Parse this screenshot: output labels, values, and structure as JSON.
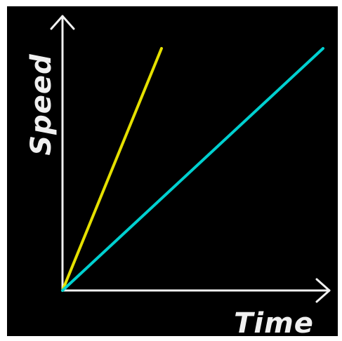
{
  "chart_data": {
    "type": "line",
    "xlabel": "Time",
    "ylabel": "Speed",
    "xlim": [
      0,
      1
    ],
    "ylim": [
      0,
      1
    ],
    "grid": false,
    "series": [
      {
        "color": "#e5e000",
        "x": [
          0,
          0.38
        ],
        "y": [
          0,
          1
        ]
      },
      {
        "color": "#00d0d0",
        "x": [
          0,
          1
        ],
        "y": [
          0,
          1
        ]
      }
    ],
    "axis_color": "#f0f0f0",
    "background": "#000000"
  }
}
